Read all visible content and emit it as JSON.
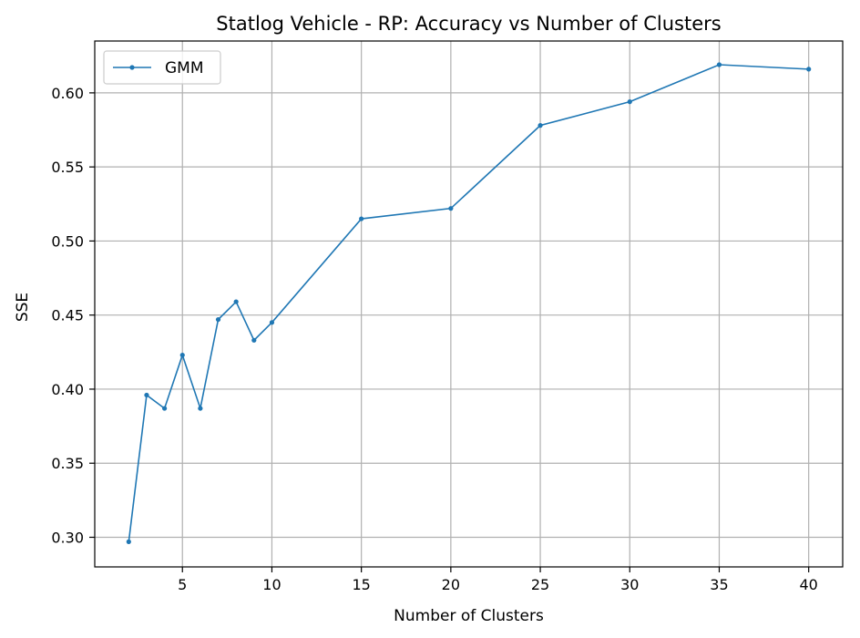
{
  "chart_data": {
    "type": "line",
    "title": "Statlog Vehicle - RP: Accuracy vs Number of Clusters",
    "xlabel": "Number of Clusters",
    "ylabel": "SSE",
    "xlim": [
      0.1,
      41.9
    ],
    "ylim": [
      0.28,
      0.635
    ],
    "xticks": [
      5,
      10,
      15,
      20,
      25,
      30,
      35,
      40
    ],
    "yticks": [
      0.3,
      0.35,
      0.4,
      0.45,
      0.5,
      0.55,
      0.6
    ],
    "grid": true,
    "legend_position": "top-left",
    "series": [
      {
        "name": "GMM",
        "color": "#1f77b4",
        "x": [
          2,
          3,
          4,
          5,
          6,
          7,
          8,
          9,
          10,
          15,
          20,
          25,
          30,
          35,
          40
        ],
        "y": [
          0.297,
          0.396,
          0.387,
          0.423,
          0.387,
          0.447,
          0.459,
          0.433,
          0.445,
          0.515,
          0.522,
          0.578,
          0.594,
          0.619,
          0.616
        ]
      }
    ]
  }
}
